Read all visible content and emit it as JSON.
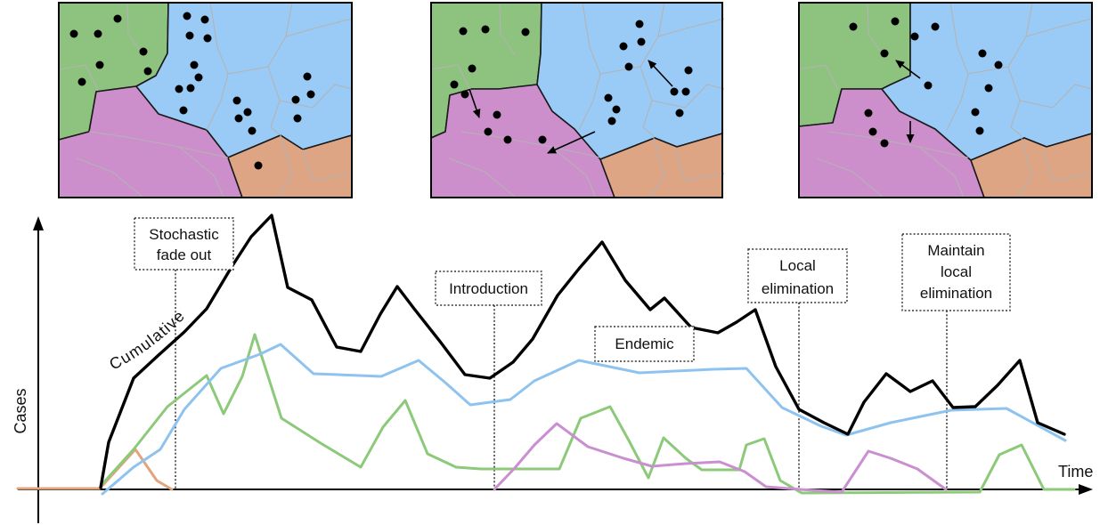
{
  "colors": {
    "region_green": "#8ec27f",
    "region_blue": "#9acbf6",
    "region_purple": "#cd8fcb",
    "region_orange": "#dea584",
    "district_border": "#b3b3b3",
    "line_cumulative": "#000000",
    "line_blue": "#8fc3ef",
    "line_green": "#8cca7a",
    "line_purple": "#ca8fd0",
    "line_orange": "#e2a47d"
  },
  "axes": {
    "y_label": "Cases",
    "x_label": "Time"
  },
  "series_labels": {
    "cumulative": "Cumulative"
  },
  "annotations": {
    "stochastic_fade_out": [
      "Stochastic",
      "fade out"
    ],
    "introduction": [
      "Introduction"
    ],
    "endemic": [
      "Endemic"
    ],
    "local_elimination": [
      "Local",
      "elimination"
    ],
    "maintain_local_elimination": [
      "Maintain",
      "local",
      "elimination"
    ]
  }
}
